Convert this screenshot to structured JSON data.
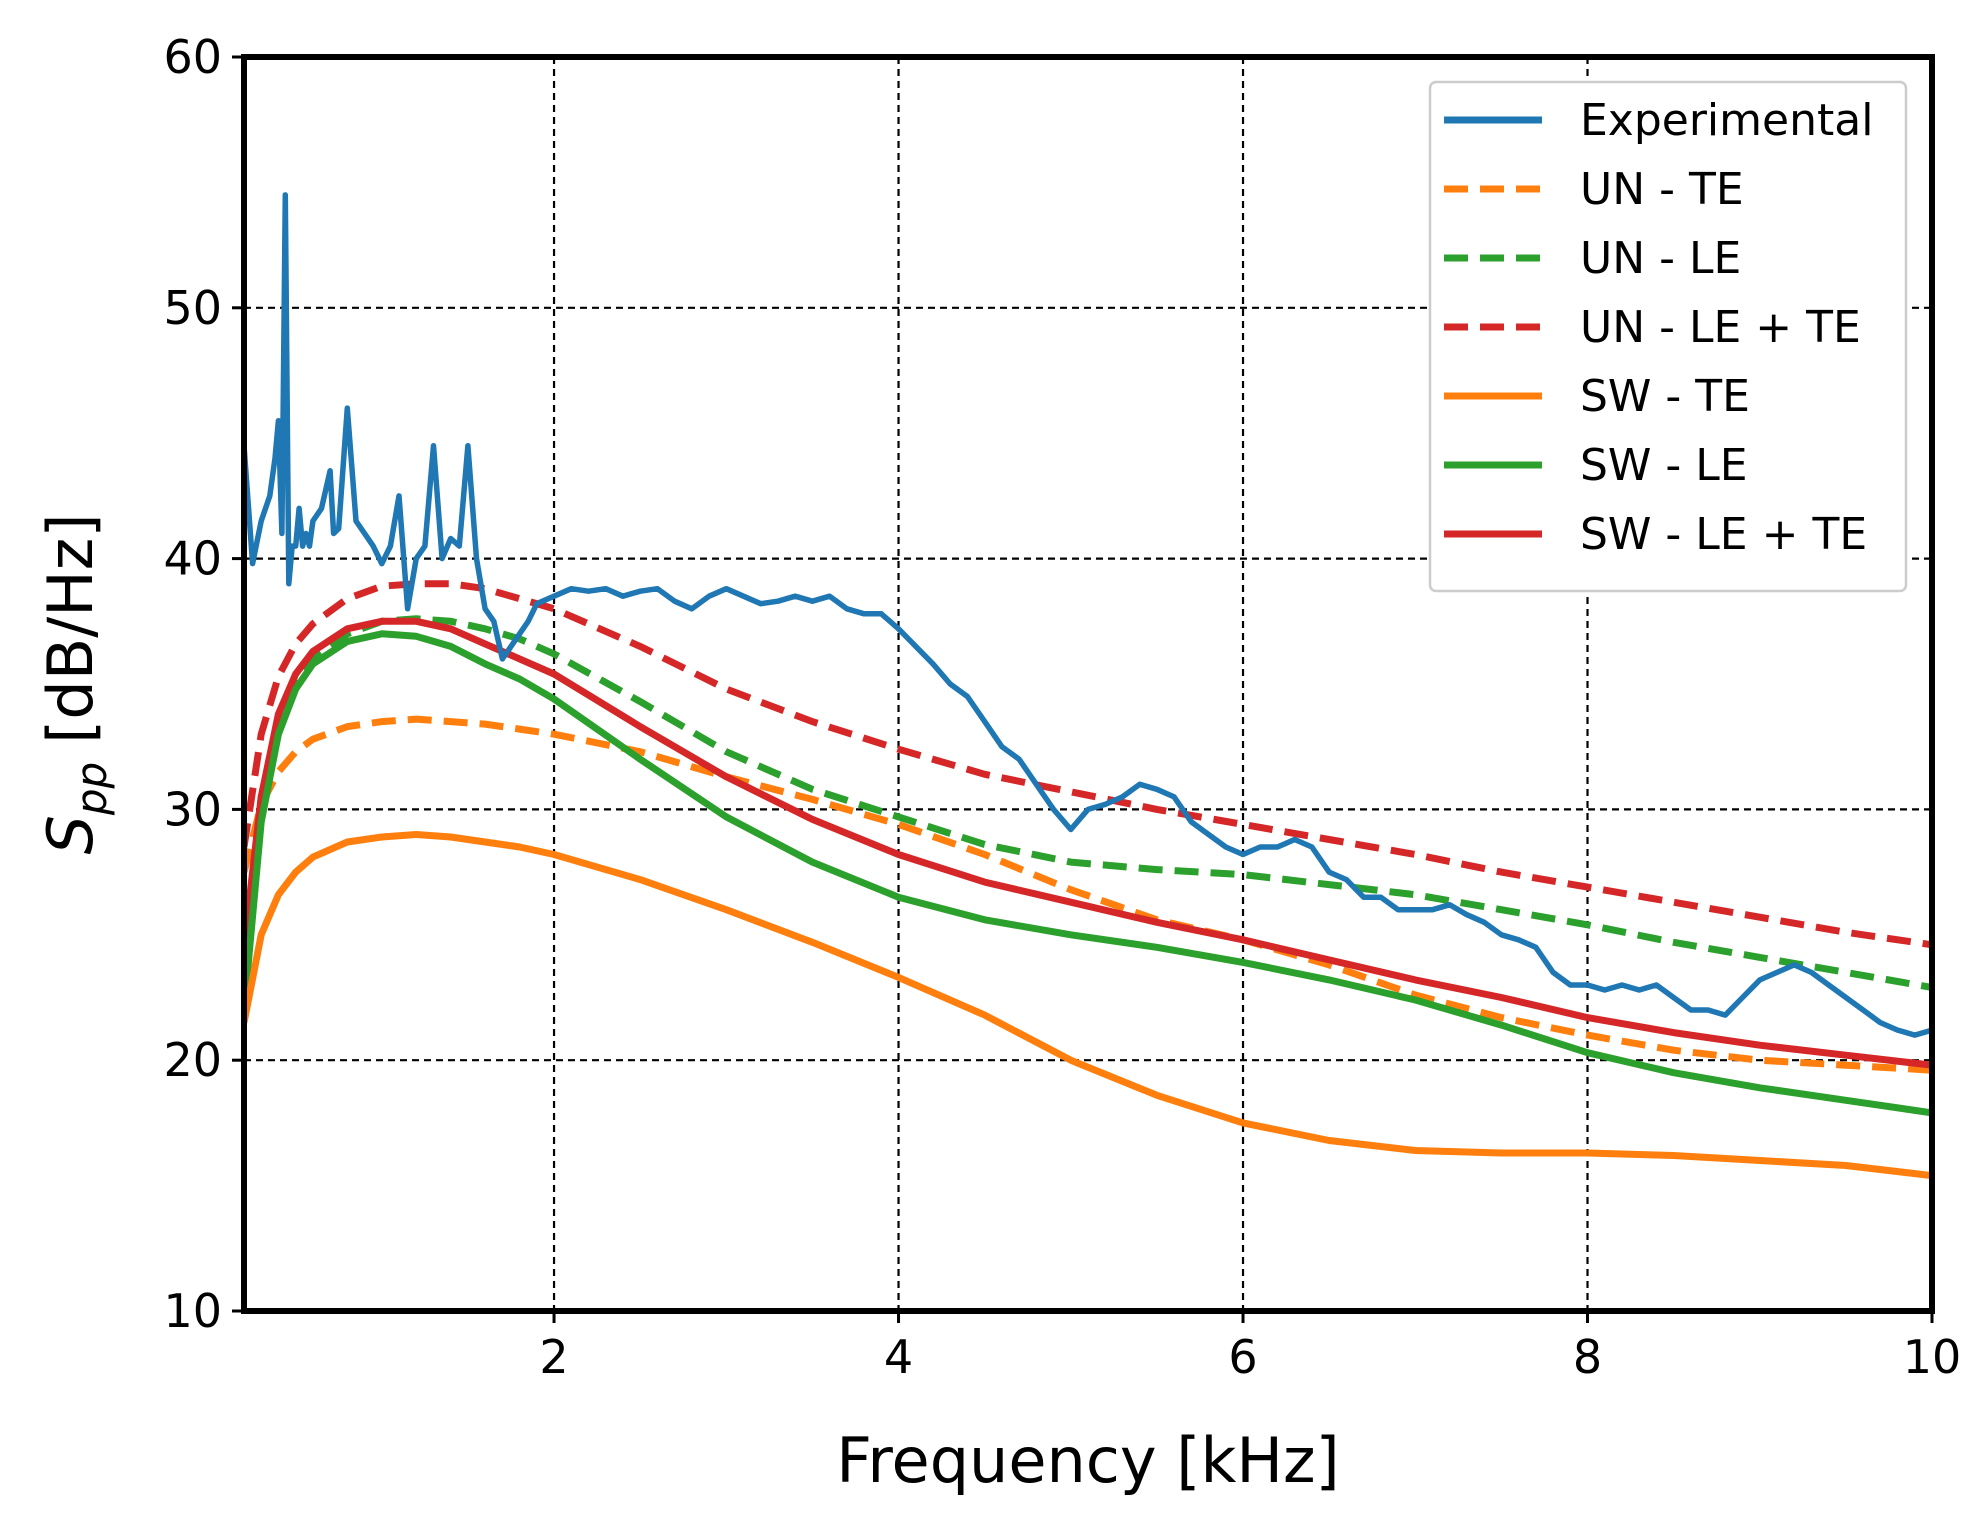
{
  "chart_data": {
    "type": "line",
    "title": "",
    "xlabel": "Frequency [kHz]",
    "ylabel_main": "S",
    "ylabel_sub": "pp",
    "ylabel_unit": "[dB/Hz]",
    "xlim": [
      0.2,
      10
    ],
    "ylim": [
      10,
      60
    ],
    "xticks": [
      2,
      4,
      6,
      8,
      10
    ],
    "yticks": [
      10,
      20,
      30,
      40,
      50,
      60
    ],
    "grid": true,
    "legend_position": "top-right",
    "series": [
      {
        "name": "Experimental",
        "color": "#1f77b4",
        "style": "solid",
        "x": [
          0.2,
          0.25,
          0.3,
          0.35,
          0.38,
          0.4,
          0.42,
          0.44,
          0.46,
          0.48,
          0.5,
          0.52,
          0.54,
          0.56,
          0.58,
          0.6,
          0.65,
          0.7,
          0.72,
          0.75,
          0.8,
          0.85,
          0.9,
          0.95,
          1.0,
          1.05,
          1.1,
          1.15,
          1.2,
          1.25,
          1.3,
          1.35,
          1.4,
          1.45,
          1.5,
          1.55,
          1.6,
          1.65,
          1.7,
          1.75,
          1.8,
          1.85,
          1.9,
          2.0,
          2.1,
          2.2,
          2.3,
          2.4,
          2.5,
          2.6,
          2.7,
          2.8,
          2.9,
          3.0,
          3.1,
          3.2,
          3.3,
          3.4,
          3.5,
          3.6,
          3.7,
          3.8,
          3.9,
          4.0,
          4.1,
          4.2,
          4.3,
          4.4,
          4.5,
          4.6,
          4.7,
          4.8,
          4.9,
          5.0,
          5.1,
          5.2,
          5.3,
          5.4,
          5.5,
          5.6,
          5.7,
          5.8,
          5.9,
          6.0,
          6.1,
          6.2,
          6.3,
          6.4,
          6.5,
          6.6,
          6.7,
          6.8,
          6.9,
          7.0,
          7.1,
          7.2,
          7.3,
          7.4,
          7.5,
          7.6,
          7.7,
          7.8,
          7.9,
          8.0,
          8.1,
          8.2,
          8.3,
          8.4,
          8.5,
          8.6,
          8.7,
          8.8,
          8.9,
          9.0,
          9.1,
          9.2,
          9.3,
          9.4,
          9.5,
          9.6,
          9.7,
          9.8,
          9.9,
          10.0
        ],
        "y": [
          44.5,
          39.8,
          41.5,
          42.5,
          44,
          45.5,
          41,
          54.5,
          39,
          40.5,
          40.5,
          42,
          40.5,
          41,
          40.5,
          41.5,
          42,
          43.5,
          41,
          41.2,
          46,
          41.5,
          41,
          40.5,
          39.8,
          40.5,
          42.5,
          38,
          40,
          40.5,
          44.5,
          40,
          40.8,
          40.5,
          44.5,
          40,
          38,
          37.5,
          36,
          36.5,
          37,
          37.5,
          38.2,
          38.5,
          38.8,
          38.7,
          38.8,
          38.5,
          38.7,
          38.8,
          38.3,
          38,
          38.5,
          38.8,
          38.5,
          38.2,
          38.3,
          38.5,
          38.3,
          38.5,
          38,
          37.8,
          37.8,
          37.2,
          36.5,
          35.8,
          35,
          34.5,
          33.5,
          32.5,
          32,
          31,
          30,
          29.2,
          30,
          30.2,
          30.5,
          31,
          30.8,
          30.5,
          29.5,
          29,
          28.5,
          28.2,
          28.5,
          28.5,
          28.8,
          28.5,
          27.5,
          27.2,
          26.5,
          26.5,
          26,
          26,
          26,
          26.2,
          25.8,
          25.5,
          25,
          24.8,
          24.5,
          23.5,
          23,
          23,
          22.8,
          23,
          22.8,
          23,
          22.5,
          22,
          22,
          21.8,
          22.5,
          23.2,
          23.5,
          23.8,
          23.5,
          23,
          22.5,
          22,
          21.5,
          21.2,
          21,
          21.2
        ]
      },
      {
        "name": "UN - TE",
        "color": "#ff7f0e",
        "style": "dashed",
        "x": [
          0.2,
          0.3,
          0.4,
          0.5,
          0.6,
          0.8,
          1.0,
          1.2,
          1.4,
          1.6,
          1.8,
          2.0,
          2.5,
          3.0,
          3.5,
          4.0,
          4.5,
          5.0,
          5.5,
          6.0,
          6.5,
          7.0,
          7.5,
          8.0,
          8.5,
          9.0,
          9.5,
          10.0
        ],
        "y": [
          27.5,
          30.2,
          31.5,
          32.3,
          32.8,
          33.3,
          33.5,
          33.6,
          33.5,
          33.4,
          33.2,
          33.0,
          32.3,
          31.3,
          30.4,
          29.4,
          28.2,
          26.8,
          25.6,
          24.8,
          23.8,
          22.6,
          21.7,
          21.0,
          20.4,
          20.0,
          19.8,
          19.6
        ]
      },
      {
        "name": "UN - LE",
        "color": "#2ca02c",
        "style": "dashed",
        "x": [
          0.2,
          0.3,
          0.4,
          0.5,
          0.6,
          0.8,
          1.0,
          1.2,
          1.4,
          1.6,
          1.8,
          2.0,
          2.5,
          3.0,
          3.5,
          4.0,
          4.5,
          5.0,
          5.5,
          6.0,
          6.5,
          7.0,
          7.5,
          8.0,
          8.5,
          9.0,
          9.5,
          10.0
        ],
        "y": [
          23.0,
          30.5,
          33.5,
          35.0,
          36.0,
          37.0,
          37.5,
          37.6,
          37.5,
          37.2,
          36.8,
          36.2,
          34.3,
          32.3,
          30.8,
          29.7,
          28.6,
          27.9,
          27.6,
          27.4,
          27.0,
          26.6,
          26.0,
          25.4,
          24.7,
          24.1,
          23.5,
          22.9
        ]
      },
      {
        "name": "UN - LE + TE",
        "color": "#d62728",
        "style": "dashed",
        "x": [
          0.2,
          0.3,
          0.4,
          0.5,
          0.6,
          0.8,
          1.0,
          1.2,
          1.4,
          1.6,
          1.8,
          2.0,
          2.5,
          3.0,
          3.5,
          4.0,
          4.5,
          5.0,
          5.5,
          6.0,
          6.5,
          7.0,
          7.5,
          8.0,
          8.5,
          9.0,
          9.5,
          10.0
        ],
        "y": [
          28.5,
          33.0,
          35.3,
          36.6,
          37.4,
          38.4,
          38.9,
          39.0,
          39.0,
          38.8,
          38.4,
          38.0,
          36.5,
          34.8,
          33.5,
          32.4,
          31.4,
          30.7,
          30.0,
          29.4,
          28.8,
          28.2,
          27.5,
          26.9,
          26.3,
          25.7,
          25.1,
          24.6
        ]
      },
      {
        "name": "SW - TE",
        "color": "#ff7f0e",
        "style": "solid",
        "x": [
          0.2,
          0.3,
          0.4,
          0.5,
          0.6,
          0.8,
          1.0,
          1.2,
          1.4,
          1.6,
          1.8,
          2.0,
          2.5,
          3.0,
          3.5,
          4.0,
          4.5,
          5.0,
          5.5,
          6.0,
          6.5,
          7.0,
          7.5,
          8.0,
          8.5,
          9.0,
          9.5,
          10.0
        ],
        "y": [
          21.5,
          25.0,
          26.6,
          27.5,
          28.1,
          28.7,
          28.9,
          29.0,
          28.9,
          28.7,
          28.5,
          28.2,
          27.2,
          26.0,
          24.7,
          23.3,
          21.8,
          20.0,
          18.6,
          17.5,
          16.8,
          16.4,
          16.3,
          16.3,
          16.2,
          16.0,
          15.8,
          15.4
        ]
      },
      {
        "name": "SW - LE",
        "color": "#2ca02c",
        "style": "solid",
        "x": [
          0.2,
          0.3,
          0.4,
          0.5,
          0.6,
          0.8,
          1.0,
          1.2,
          1.4,
          1.6,
          1.8,
          2.0,
          2.5,
          3.0,
          3.5,
          4.0,
          4.5,
          5.0,
          5.5,
          6.0,
          6.5,
          7.0,
          7.5,
          8.0,
          8.5,
          9.0,
          9.5,
          10.0
        ],
        "y": [
          22.0,
          29.5,
          33.0,
          34.8,
          35.8,
          36.7,
          37.0,
          36.9,
          36.5,
          35.8,
          35.2,
          34.4,
          32.0,
          29.7,
          27.9,
          26.5,
          25.6,
          25.0,
          24.5,
          23.9,
          23.2,
          22.4,
          21.4,
          20.3,
          19.5,
          18.9,
          18.4,
          17.9
        ]
      },
      {
        "name": "SW - LE + TE",
        "color": "#d62728",
        "style": "solid",
        "x": [
          0.2,
          0.3,
          0.4,
          0.5,
          0.6,
          0.8,
          1.0,
          1.2,
          1.4,
          1.6,
          1.8,
          2.0,
          2.5,
          3.0,
          3.5,
          4.0,
          4.5,
          5.0,
          5.5,
          6.0,
          6.5,
          7.0,
          7.5,
          8.0,
          8.5,
          9.0,
          9.5,
          10.0
        ],
        "y": [
          24.5,
          30.5,
          33.8,
          35.4,
          36.3,
          37.2,
          37.5,
          37.5,
          37.2,
          36.6,
          36.0,
          35.4,
          33.3,
          31.3,
          29.6,
          28.2,
          27.1,
          26.3,
          25.5,
          24.8,
          24.0,
          23.2,
          22.5,
          21.7,
          21.1,
          20.6,
          20.2,
          19.8
        ]
      }
    ]
  }
}
